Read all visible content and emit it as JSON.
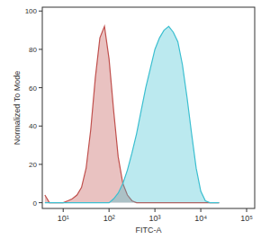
{
  "chart_data": {
    "type": "area",
    "x_label": "FITC-A",
    "y_label": "Normalized To Mode",
    "log": "x",
    "x": [
      3.98,
      5.01,
      6.31,
      7.94,
      10,
      12.6,
      15.8,
      20,
      25.1,
      31.6,
      39.8,
      50.1,
      63.1,
      79.4,
      100,
      126,
      158,
      200,
      251,
      316,
      398,
      501,
      631,
      794,
      1000,
      1260,
      1580,
      2000,
      2510,
      3160,
      3980,
      5010,
      6310,
      7940,
      10000,
      12600,
      15800,
      20000,
      25100
    ],
    "series": [
      {
        "color": "#c0504d",
        "values": [
          4,
          0,
          0,
          0,
          0,
          1,
          2,
          4,
          8,
          18,
          38,
          65,
          86,
          92,
          75,
          48,
          24,
          10,
          4,
          1,
          0,
          0,
          0,
          0,
          0,
          0,
          0,
          0,
          0,
          0,
          0,
          0,
          0,
          0,
          0,
          0,
          0,
          0,
          0
        ]
      },
      {
        "color": "#3bbfd0",
        "values": [
          0,
          0,
          0,
          0,
          0,
          0,
          0,
          0,
          0,
          0,
          0,
          0,
          0,
          0,
          0,
          2,
          5,
          10,
          17,
          26,
          36,
          48,
          60,
          70,
          80,
          86,
          90,
          92,
          89,
          84,
          72,
          55,
          36,
          18,
          6,
          1,
          0,
          0,
          0
        ]
      }
    ],
    "xlim": [
      3.5,
      150000
    ],
    "xticks": [
      {
        "value": 10,
        "label": "10¹"
      },
      {
        "value": 100,
        "label": "10²"
      },
      {
        "value": 1000,
        "label": "10³"
      },
      {
        "value": 10000,
        "label": "10⁴"
      },
      {
        "value": 100000,
        "label": "10⁵"
      }
    ],
    "ylim": [
      -3,
      102
    ],
    "yticks": [
      0,
      20,
      40,
      60,
      80,
      100
    ],
    "grid": false
  }
}
